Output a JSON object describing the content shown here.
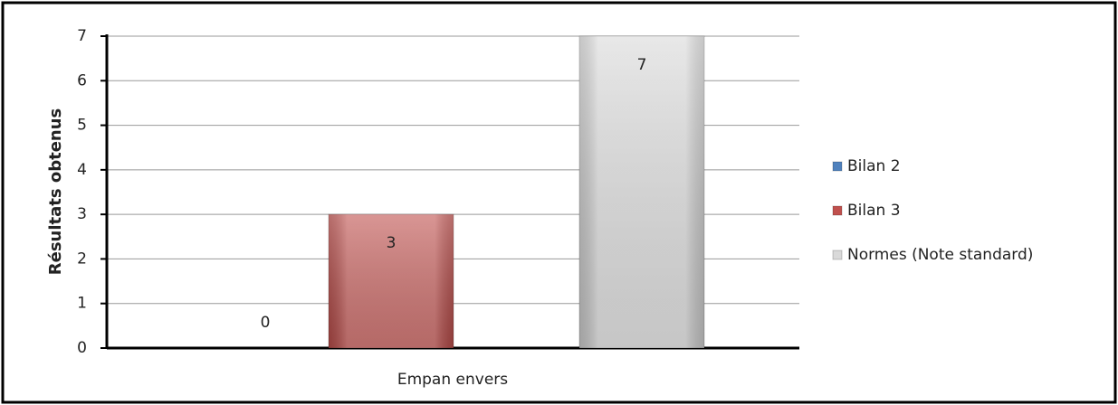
{
  "chart_data": {
    "type": "bar",
    "categories": [
      "Empan envers"
    ],
    "series": [
      {
        "name": "Bilan 2",
        "color": "#4f81bd",
        "values": [
          0
        ]
      },
      {
        "name": "Bilan 3",
        "color": "#c0504d",
        "values": [
          3
        ]
      },
      {
        "name": "Normes (Note standard)",
        "color": "#d9d9d9",
        "values": [
          7
        ]
      }
    ],
    "ylabel": "Résultats obtenus",
    "ylim": [
      0,
      7
    ],
    "yticks": [
      0,
      1,
      2,
      3,
      4,
      5,
      6,
      7
    ],
    "grid": true,
    "legend": "right"
  }
}
